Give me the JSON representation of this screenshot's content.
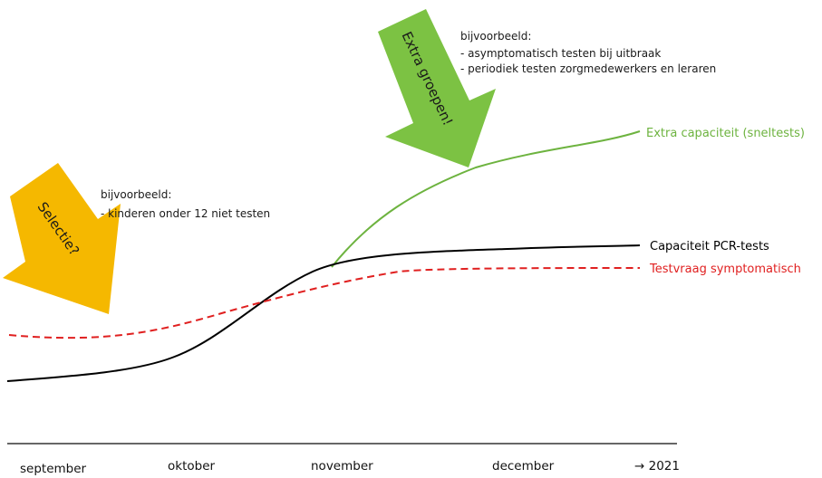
{
  "chart_data": {
    "type": "line",
    "x_axis": {
      "labels": [
        "september",
        "oktober",
        "november",
        "december",
        "→ 2021"
      ]
    },
    "series": [
      {
        "name": "Extra capaciteit (sneltests)",
        "color": "#6db33f",
        "style": "solid",
        "relative_points": [
          [
            4.1,
            0.6
          ],
          [
            4.5,
            0.74
          ],
          [
            5.0,
            0.85
          ],
          [
            5.5,
            0.93
          ],
          [
            5.9,
            1.0
          ]
        ]
      },
      {
        "name": "Capaciteit PCR-tests",
        "color": "#000000",
        "style": "solid",
        "relative_points": [
          [
            1.0,
            0.05
          ],
          [
            2.0,
            0.14
          ],
          [
            3.0,
            0.45
          ],
          [
            4.0,
            0.59
          ],
          [
            4.5,
            0.63
          ],
          [
            5.0,
            0.65
          ],
          [
            5.9,
            0.67
          ]
        ]
      },
      {
        "name": "Testvraag symptomatisch",
        "color": "#e02020",
        "style": "dashed",
        "relative_points": [
          [
            1.0,
            0.27
          ],
          [
            2.0,
            0.29
          ],
          [
            3.0,
            0.45
          ],
          [
            4.0,
            0.54
          ],
          [
            5.0,
            0.58
          ],
          [
            5.9,
            0.58
          ]
        ]
      }
    ]
  },
  "arrows": [
    {
      "label": "Selectie?",
      "color": "#f5b800",
      "note_title": "bijvoorbeeld:",
      "note_lines": [
        "- kinderen onder 12 niet testen"
      ]
    },
    {
      "label": "Extra groepen!",
      "color": "#7cc243",
      "note_title": "bijvoorbeeld:",
      "note_lines": [
        "- asymptomatisch testen bij uitbraak",
        "- periodiek testen zorgmedewerkers en leraren"
      ]
    }
  ]
}
